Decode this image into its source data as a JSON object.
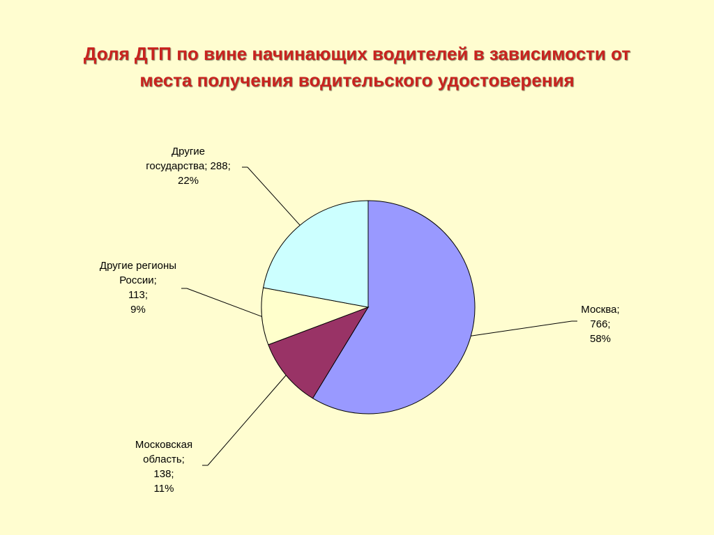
{
  "slide": {
    "title_line1": "Доля ДТП по вине начинающих водителей в зависимости от",
    "title_line2": "места получения водительского удостоверения",
    "background": "#FFFDD0",
    "title_color": "#C8231F"
  },
  "chart_data": {
    "type": "pie",
    "title": "Доля ДТП по вине начинающих водителей в зависимости от места получения водительского удостоверения",
    "legend": "none",
    "slices": [
      {
        "name": "Москва",
        "value": 766,
        "percent": "58%",
        "color": "#9999FF",
        "label_lines": [
          "Москва;",
          "766;",
          "58%"
        ]
      },
      {
        "name": "Московская область",
        "value": 138,
        "percent": "11%",
        "color": "#993366",
        "label_lines": [
          "Московская",
          "область;",
          "138;",
          "11%"
        ]
      },
      {
        "name": "Другие регионы России",
        "value": 113,
        "percent": "9%",
        "color": "#FFFFCC",
        "label_lines": [
          "Другие регионы",
          "России;",
          "113;",
          "9%"
        ]
      },
      {
        "name": "Другие государства",
        "value": 288,
        "percent": "22%",
        "color": "#CCFFFF",
        "label_lines": [
          "Другие",
          "государства; 288;",
          "22%"
        ]
      }
    ]
  }
}
